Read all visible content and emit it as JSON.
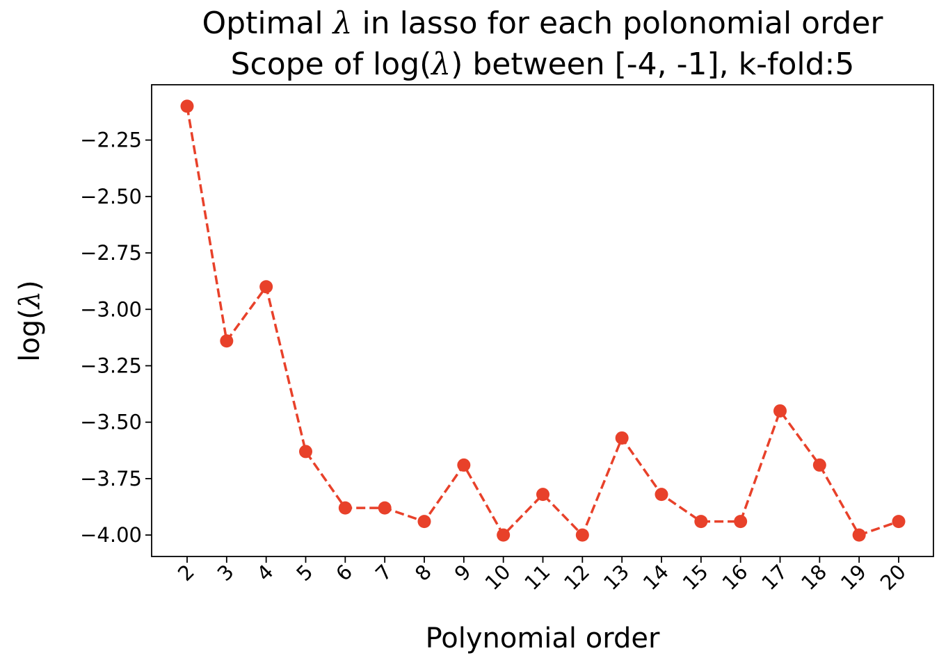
{
  "chart_data": {
    "type": "line",
    "title_line1_prefix": "Optimal ",
    "title_line1_symbol": "λ",
    "title_line1_suffix": " in lasso for each polonomial order",
    "title_line2_prefix": "Scope of log(",
    "title_line2_symbol": "λ",
    "title_line2_suffix": ") between [-4, -1], k-fold:5",
    "xlabel": "Polynomial order",
    "ylabel_prefix": "log(",
    "ylabel_symbol": "λ",
    "ylabel_suffix": ")",
    "categories": [
      "2",
      "3",
      "4",
      "5",
      "6",
      "7",
      "8",
      "9",
      "10",
      "11",
      "12",
      "13",
      "14",
      "15",
      "16",
      "17",
      "18",
      "19",
      "20"
    ],
    "values": [
      -2.1,
      -3.14,
      -2.9,
      -3.63,
      -3.88,
      -3.88,
      -3.94,
      -3.69,
      -4.0,
      -3.82,
      -4.0,
      -3.57,
      -3.82,
      -3.94,
      -3.94,
      -3.45,
      -3.69,
      -4.0,
      -3.94
    ],
    "y_ticks": [
      -4.0,
      -3.75,
      -3.5,
      -3.25,
      -3.0,
      -2.75,
      -2.5,
      -2.25
    ],
    "y_tick_labels": [
      "−4.00",
      "−3.75",
      "−3.50",
      "−3.25",
      "−3.00",
      "−2.75",
      "−2.50",
      "−2.25"
    ],
    "ylim": [
      -4.095,
      -2.005
    ],
    "line_style": "dashed",
    "marker": "circle",
    "color": "#e8412a",
    "grid": false,
    "legend": "none"
  }
}
